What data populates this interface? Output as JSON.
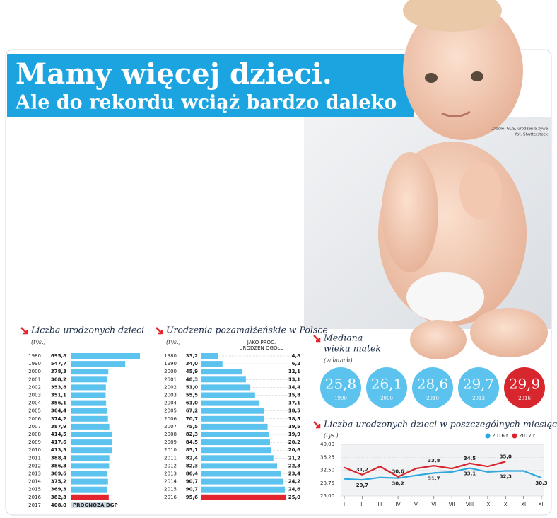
{
  "header": {
    "title": "Mamy więcej dzieci.",
    "subtitle": "Ale do rekordu wciąż bardzo daleko"
  },
  "source": [
    "Źródło: GUS, urodzenia żywe",
    "fot. Shutterstock"
  ],
  "chart_data": [
    {
      "type": "hbar",
      "title": "Liczba urodzonych dzieci",
      "unit": "(tys.)",
      "categories": [
        "1980",
        "1990",
        "2000",
        "2001",
        "2002",
        "2003",
        "2004",
        "2005",
        "2006",
        "2007",
        "2008",
        "2009",
        "2010",
        "2011",
        "2012",
        "2013",
        "2014",
        "2015",
        "2016",
        "2017"
      ],
      "values": [
        695.8,
        547.7,
        378.3,
        368.2,
        353.8,
        351.1,
        356.1,
        364.4,
        374.2,
        387.9,
        414.5,
        417.6,
        413.3,
        388.4,
        386.3,
        369.6,
        375.2,
        369.3,
        382.3,
        408.0
      ],
      "value_labels": [
        "695,8",
        "547,7",
        "378,3",
        "368,2",
        "353,8",
        "351,1",
        "356,1",
        "364,4",
        "374,2",
        "387,9",
        "414,5",
        "417,6",
        "413,3",
        "388,4",
        "386,3",
        "369,6",
        "375,2",
        "369,3",
        "382,3",
        "408,0"
      ],
      "colors": [
        "#5cc3ee",
        "#5cc3ee",
        "#5cc3ee",
        "#5cc3ee",
        "#5cc3ee",
        "#5cc3ee",
        "#5cc3ee",
        "#5cc3ee",
        "#5cc3ee",
        "#5cc3ee",
        "#5cc3ee",
        "#5cc3ee",
        "#5cc3ee",
        "#5cc3ee",
        "#5cc3ee",
        "#5cc3ee",
        "#5cc3ee",
        "#5cc3ee",
        "#e3262d",
        "#cfdae4"
      ],
      "annotation": "PROGNOZA DGP"
    },
    {
      "type": "share",
      "title": "Urodzenia pozamałżeńskie w Polsce",
      "unit": "(tys.)",
      "column_label": [
        "JAKO PROC.",
        "URODZEŃ OGÓŁU"
      ],
      "categories": [
        "1980",
        "1990",
        "2000",
        "2001",
        "2002",
        "2003",
        "2004",
        "2005",
        "2006",
        "2007",
        "2008",
        "2009",
        "2010",
        "2011",
        "2012",
        "2013",
        "2014",
        "2015",
        "2016"
      ],
      "values": [
        33.2,
        34.0,
        45.9,
        48.3,
        51.0,
        55.5,
        61.0,
        67.2,
        70.7,
        75.5,
        82.3,
        84.5,
        85.1,
        82.4,
        82.3,
        86.4,
        90.7,
        90.7,
        95.6
      ],
      "value_labels": [
        "33,2",
        "34,0",
        "45,9",
        "48,3",
        "51,0",
        "55,5",
        "61,0",
        "67,2",
        "70,7",
        "75,5",
        "82,3",
        "84,5",
        "85,1",
        "82,4",
        "82,3",
        "86,4",
        "90,7",
        "90,7",
        "95,6"
      ],
      "shares": [
        4.8,
        6.2,
        12.1,
        13.1,
        14.4,
        15.8,
        17.1,
        18.5,
        18.5,
        19.5,
        19.9,
        20.2,
        20.6,
        21.2,
        22.3,
        23.4,
        24.2,
        24.6,
        25.0
      ],
      "share_labels": [
        "4,8",
        "6,2",
        "12,1",
        "13,1",
        "14,4",
        "15,8",
        "17,1",
        "18,5",
        "18,5",
        "19,5",
        "19,9",
        "20,2",
        "20,6",
        "21,2",
        "22,3",
        "23,4",
        "24,2",
        "24,6",
        "25,0"
      ],
      "colors": [
        "#5cc3ee",
        "#5cc3ee",
        "#5cc3ee",
        "#5cc3ee",
        "#5cc3ee",
        "#5cc3ee",
        "#5cc3ee",
        "#5cc3ee",
        "#5cc3ee",
        "#5cc3ee",
        "#5cc3ee",
        "#5cc3ee",
        "#5cc3ee",
        "#5cc3ee",
        "#5cc3ee",
        "#5cc3ee",
        "#5cc3ee",
        "#5cc3ee",
        "#e3262d"
      ]
    },
    {
      "type": "bubbles",
      "title": [
        "Mediana",
        "wieku matek"
      ],
      "unit": "(w latach)",
      "categories": [
        "1990",
        "2000",
        "2010",
        "2013",
        "2016"
      ],
      "values": [
        25.8,
        26.1,
        28.6,
        29.7,
        29.9
      ],
      "value_labels": [
        "25,8",
        "26,1",
        "28,6",
        "29,7",
        "29,9"
      ],
      "colors": [
        "#5cc3ee",
        "#5cc3ee",
        "#5cc3ee",
        "#5cc3ee",
        "#d7262d"
      ]
    },
    {
      "type": "line",
      "title": "Liczba urodzonych dzieci w poszczególnych miesiącach",
      "unit": "(tys.)",
      "categories": [
        "I",
        "II",
        "III",
        "IV",
        "V",
        "VI",
        "VII",
        "VIII",
        "IX",
        "X",
        "XI",
        "XII"
      ],
      "ylim": [
        25,
        40
      ],
      "yticks": [
        {
          "value": 40,
          "label": "40,00"
        },
        {
          "value": 36.25,
          "label": "36,25"
        },
        {
          "value": 32.5,
          "label": "32,50"
        },
        {
          "value": 28.75,
          "label": "28,75"
        },
        {
          "value": 25,
          "label": "25,00"
        }
      ],
      "grid": true,
      "legend": "top-right",
      "series": [
        {
          "name": "2016 r.",
          "color": "#2fa8e0",
          "values": [
            30.0,
            29.7,
            30.4,
            30.2,
            31.0,
            31.7,
            32.0,
            33.1,
            32.0,
            32.3,
            32.3,
            30.3
          ],
          "value_labels": [
            null,
            "29,7",
            null,
            "30,2",
            null,
            "31,7",
            null,
            "33,1",
            null,
            "32,3",
            null,
            "30,3"
          ]
        },
        {
          "name": "2017 r.",
          "color": "#d7262d",
          "values": [
            33.3,
            31.2,
            33.6,
            30.6,
            33.0,
            33.8,
            33.0,
            34.5,
            33.6,
            35.0,
            null,
            null
          ],
          "value_labels": [
            null,
            "31,2",
            null,
            "30,6",
            null,
            "33,8",
            null,
            "34,5",
            null,
            "35,0",
            null,
            null
          ]
        }
      ]
    }
  ]
}
